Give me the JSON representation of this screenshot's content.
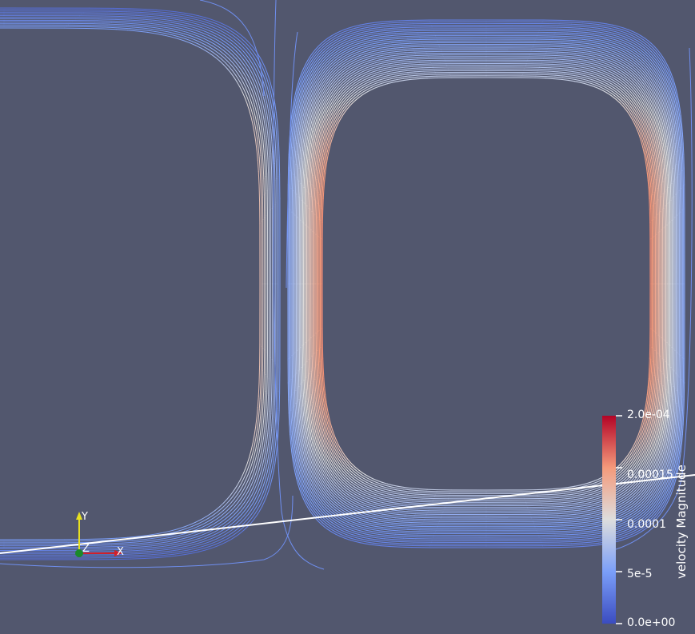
{
  "colorbar": {
    "title": "velocity Magnitude",
    "range": [
      0,
      0.0002
    ],
    "ticks": [
      {
        "value": 0.0002,
        "label": "2.0e-04"
      },
      {
        "value": 0.00015,
        "label": "0.00015"
      },
      {
        "value": 0.0001,
        "label": "0.0001"
      },
      {
        "value": 5e-05,
        "label": "5e-5"
      },
      {
        "value": 0,
        "label": "0.0e+00"
      }
    ],
    "colors": {
      "low": "#3b4cc0",
      "mid": "#dddddd",
      "high": "#b40426"
    }
  },
  "axes": {
    "x_label": "X",
    "y_label": "Y",
    "z_label": "Z",
    "colors": {
      "x": "#d0202a",
      "y": "#e8e020",
      "z": "#1a8a2a"
    }
  },
  "scene": {
    "background": "#52576e"
  }
}
